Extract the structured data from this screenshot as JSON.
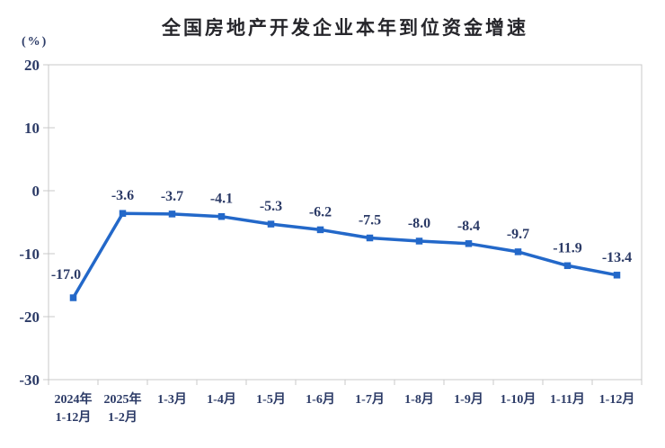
{
  "page": {
    "background": "#ffffff"
  },
  "chart_data": {
    "type": "line",
    "title": "全国房地产开发企业本年到位资金增速",
    "unit_label": "(%)",
    "categories": [
      "2024年\n1-12月",
      "2025年\n1-2月",
      "1-3月",
      "1-4月",
      "1-5月",
      "1-6月",
      "1-7月",
      "1-8月",
      "1-9月",
      "1-10月",
      "1-11月",
      "1-12月"
    ],
    "values": [
      -17.0,
      -3.6,
      -3.7,
      -4.1,
      -5.3,
      -6.2,
      -7.5,
      -8.0,
      -8.4,
      -9.7,
      -11.9,
      -13.4
    ],
    "point_labels": [
      "-17.0",
      "-3.6",
      "-3.7",
      "-4.1",
      "-5.3",
      "-6.2",
      "-7.5",
      "-8.0",
      "-8.4",
      "-9.7",
      "-11.9",
      "-13.4"
    ],
    "y_ticks": [
      20,
      10,
      0,
      -10,
      -20,
      -30
    ],
    "ylim": [
      -30,
      20
    ],
    "xlabel": "",
    "ylabel": "(%)",
    "grid": false,
    "legend": false,
    "marker": "square",
    "colors": {
      "line": "#2368C9",
      "axis_text": "#2b3a66",
      "point_label_text": "#2b3a66",
      "title_text": "#26262b",
      "plot_border": "#c9c9c9"
    }
  }
}
